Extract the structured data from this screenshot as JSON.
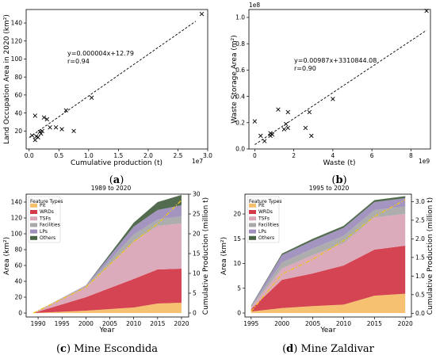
{
  "chart_data": [
    {
      "id": "a",
      "type": "scatter",
      "caption_letter": "a",
      "xlabel": "Cumulative production (t)",
      "ylabel": "Land Occupation Area in 2020 (km²)",
      "x_multiplier_label": "1e7",
      "xlim": [
        -0.05,
        3.0
      ],
      "ylim": [
        0,
        155
      ],
      "xticks": [
        0.0,
        0.5,
        1.0,
        1.5,
        2.0,
        2.5,
        3.0
      ],
      "xtick_labels": [
        "0.0",
        "0.5",
        "1.0",
        "1.5",
        "2.0",
        "2.5",
        "3.0"
      ],
      "yticks": [
        20,
        40,
        60,
        80,
        100,
        120,
        140
      ],
      "ytick_labels": [
        "20",
        "40",
        "60",
        "80",
        "100",
        "120",
        "140"
      ],
      "points": [
        [
          0.05,
          15
        ],
        [
          0.1,
          37
        ],
        [
          0.1,
          10
        ],
        [
          0.12,
          14
        ],
        [
          0.15,
          13
        ],
        [
          0.18,
          19
        ],
        [
          0.2,
          17
        ],
        [
          0.22,
          20
        ],
        [
          0.25,
          35
        ],
        [
          0.3,
          33
        ],
        [
          0.35,
          24
        ],
        [
          0.45,
          24
        ],
        [
          0.55,
          22
        ],
        [
          0.62,
          43
        ],
        [
          0.75,
          20
        ],
        [
          1.05,
          57
        ],
        [
          2.9,
          150
        ]
      ],
      "fit_line": {
        "x": [
          0.0,
          2.8
        ],
        "y": [
          12.79,
          142
        ]
      },
      "equation": "y=0.000004x+12.79",
      "r_text": "r=0.94"
    },
    {
      "id": "b",
      "type": "scatter",
      "caption_letter": "b",
      "xlabel": "Waste (t)",
      "ylabel": "Waste Storage Area (m²)",
      "x_multiplier_label": "1e9",
      "y_multiplier_label": "1e8",
      "xlim": [
        -0.3,
        9.0
      ],
      "ylim": [
        0,
        1.06
      ],
      "xticks": [
        0,
        2,
        4,
        6,
        8
      ],
      "xtick_labels": [
        "0",
        "2",
        "4",
        "6",
        "8"
      ],
      "yticks": [
        0.0,
        0.2,
        0.4,
        0.6,
        0.8,
        1.0
      ],
      "ytick_labels": [
        "0.0",
        "0.2",
        "0.4",
        "0.6",
        "0.8",
        "1.0"
      ],
      "points": [
        [
          0.0,
          0.21
        ],
        [
          0.3,
          0.1
        ],
        [
          0.5,
          0.06
        ],
        [
          0.8,
          0.12
        ],
        [
          0.8,
          0.1
        ],
        [
          0.9,
          0.11
        ],
        [
          1.2,
          0.3
        ],
        [
          1.5,
          0.15
        ],
        [
          1.6,
          0.19
        ],
        [
          1.7,
          0.16
        ],
        [
          1.7,
          0.28
        ],
        [
          2.6,
          0.16
        ],
        [
          2.8,
          0.28
        ],
        [
          2.9,
          0.1
        ],
        [
          4.0,
          0.38
        ],
        [
          8.8,
          1.05
        ]
      ],
      "fit_line": {
        "x": [
          0.0,
          8.8
        ],
        "y": [
          0.0331,
          0.902
        ]
      },
      "equation": "y=0.00987x+3310844.08",
      "r_text": "r=0.90"
    },
    {
      "id": "c",
      "type": "area",
      "title": "1989 to 2020",
      "caption_letter": "c",
      "caption_text": "Mine Escondida",
      "xlabel": "Year",
      "ylabel": "Area (km²)",
      "y2label": "Cumulative Production (million t)",
      "legend_title": "Feature Types",
      "xlim": [
        1987.5,
        2021.5
      ],
      "ylim": [
        -5,
        150
      ],
      "y2lim": [
        -1,
        30
      ],
      "xticks": [
        1990,
        1995,
        2000,
        2005,
        2010,
        2015,
        2020
      ],
      "xtick_labels": [
        "1990",
        "1995",
        "2000",
        "2005",
        "2010",
        "2015",
        "2020"
      ],
      "yticks": [
        0,
        20,
        40,
        60,
        80,
        100,
        120,
        140
      ],
      "ytick_labels": [
        "0",
        "20",
        "40",
        "60",
        "80",
        "100",
        "120",
        "140"
      ],
      "y2ticks": [
        0,
        5,
        10,
        15,
        20,
        25,
        30
      ],
      "y2tick_labels": [
        "0",
        "5",
        "10",
        "15",
        "20",
        "25",
        "30"
      ],
      "x": [
        1989,
        2000,
        2010,
        2015,
        2020
      ],
      "series": [
        {
          "name": "Pit",
          "color": "#f5bf6a",
          "values": [
            0,
            3,
            7,
            12,
            13
          ]
        },
        {
          "name": "WRDs",
          "color": "#d33a4a",
          "values": [
            0,
            17,
            36,
            43,
            43
          ]
        },
        {
          "name": "TSFs",
          "color": "#d9a6b8",
          "values": [
            0,
            13,
            47,
            55,
            57
          ]
        },
        {
          "name": "Facilities",
          "color": "#a9a9a9",
          "values": [
            0,
            1,
            9,
            8,
            9
          ]
        },
        {
          "name": "LPs",
          "color": "#9e8fbd",
          "values": [
            0,
            1,
            10,
            12,
            14
          ]
        },
        {
          "name": "Others",
          "color": "#4a6446",
          "values": [
            0,
            0,
            5,
            10,
            13
          ]
        }
      ],
      "production": {
        "x": [
          1989,
          2000,
          2010,
          2015,
          2020
        ],
        "y": [
          0,
          6.5,
          18,
          22.5,
          28.5
        ],
        "color": "#f0c21f"
      }
    },
    {
      "id": "d",
      "type": "area",
      "title": "1995 to 2020",
      "caption_letter": "d",
      "caption_text": "Mine Zaldivar",
      "xlabel": "Year",
      "ylabel": "Area (km²)",
      "y2label": "Cumulative Production (million t)",
      "legend_title": "Feature Types",
      "xlim": [
        1994,
        2021
      ],
      "ylim": [
        -0.8,
        24
      ],
      "y2lim": [
        -0.1,
        3.2
      ],
      "xticks": [
        1995,
        2000,
        2005,
        2010,
        2015,
        2020
      ],
      "xtick_labels": [
        "1995",
        "2000",
        "2005",
        "2010",
        "2015",
        "2020"
      ],
      "yticks": [
        0,
        5,
        10,
        15,
        20
      ],
      "ytick_labels": [
        "0",
        "5",
        "10",
        "15",
        "20"
      ],
      "y2ticks": [
        0.0,
        0.5,
        1.0,
        1.5,
        2.0,
        2.5,
        3.0
      ],
      "y2tick_labels": [
        "0.0",
        "0.5",
        "1.0",
        "1.5",
        "2.0",
        "2.5",
        "3.0"
      ],
      "x": [
        1995,
        2000,
        2005,
        2010,
        2015,
        2020
      ],
      "series": [
        {
          "name": "Pit",
          "color": "#f5bf6a",
          "values": [
            0.3,
            1.0,
            1.4,
            1.7,
            3.5,
            3.9
          ]
        },
        {
          "name": "WRDs",
          "color": "#d33a4a",
          "values": [
            0.5,
            5.7,
            6.6,
            7.9,
            9.3,
            9.7
          ]
        },
        {
          "name": "TSFs",
          "color": "#d9a6b8",
          "values": [
            0.3,
            2.3,
            3.7,
            4.5,
            6.5,
            6.4
          ]
        },
        {
          "name": "Facilities",
          "color": "#a9a9a9",
          "values": [
            0.2,
            1.2,
            1.3,
            1.5,
            1.5,
            1.5
          ]
        },
        {
          "name": "LPs",
          "color": "#9e8fbd",
          "values": [
            0.1,
            1.5,
            1.6,
            1.6,
            1.6,
            1.7
          ]
        },
        {
          "name": "Others",
          "color": "#4a6446",
          "values": [
            0.1,
            0.3,
            0.4,
            0.4,
            0.4,
            0.4
          ]
        }
      ],
      "production": {
        "x": [
          1995,
          2000,
          2005,
          2010,
          2015,
          2020
        ],
        "y": [
          0.05,
          1.05,
          1.45,
          1.95,
          2.6,
          3.05
        ],
        "color": "#f0c21f"
      }
    }
  ]
}
